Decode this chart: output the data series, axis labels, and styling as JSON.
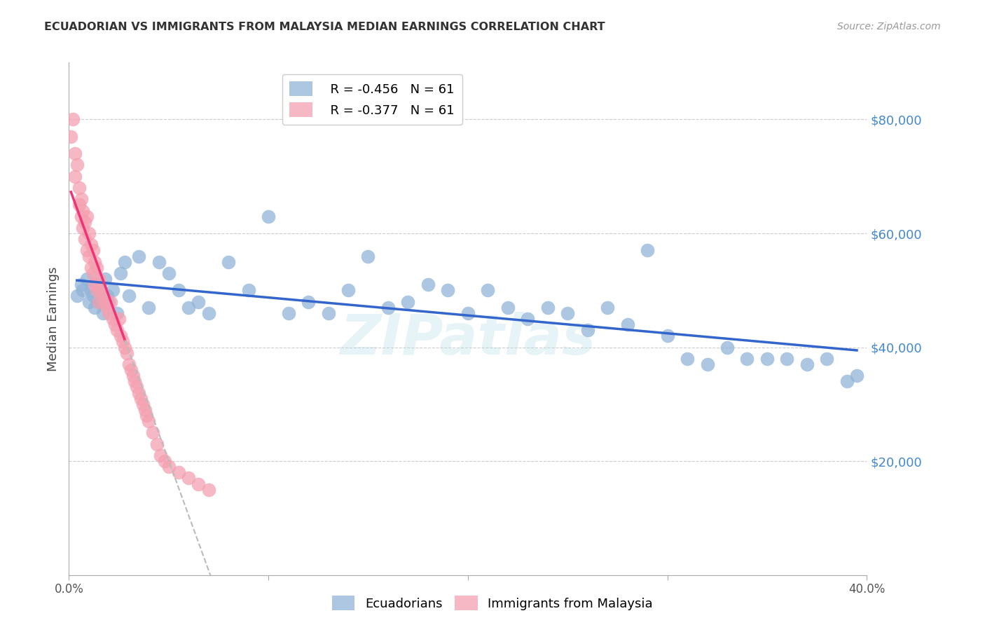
{
  "title": "ECUADORIAN VS IMMIGRANTS FROM MALAYSIA MEDIAN EARNINGS CORRELATION CHART",
  "source": "Source: ZipAtlas.com",
  "ylabel": "Median Earnings",
  "right_yticks": [
    20000,
    40000,
    60000,
    80000
  ],
  "right_yticklabels": [
    "$20,000",
    "$40,000",
    "$60,000",
    "$80,000"
  ],
  "xlim": [
    0.0,
    0.4
  ],
  "ylim": [
    0,
    90000
  ],
  "legend_blue_r": "R = -0.456",
  "legend_blue_n": "N = 61",
  "legend_pink_r": "R = -0.377",
  "legend_pink_n": "N = 61",
  "blue_color": "#92B4D7",
  "pink_color": "#F4A0B0",
  "trend_blue_color": "#3366CC",
  "trend_pink_color": "#EE3377",
  "trend_pink_dashed_color": "#BBBBBB",
  "watermark": "ZIPatlas",
  "ecuadorians_x": [
    0.004,
    0.006,
    0.007,
    0.009,
    0.01,
    0.011,
    0.012,
    0.013,
    0.014,
    0.015,
    0.016,
    0.017,
    0.018,
    0.019,
    0.02,
    0.022,
    0.024,
    0.026,
    0.028,
    0.03,
    0.035,
    0.04,
    0.045,
    0.05,
    0.055,
    0.06,
    0.065,
    0.07,
    0.08,
    0.09,
    0.1,
    0.11,
    0.12,
    0.13,
    0.14,
    0.15,
    0.16,
    0.17,
    0.18,
    0.19,
    0.2,
    0.21,
    0.22,
    0.23,
    0.24,
    0.25,
    0.26,
    0.27,
    0.28,
    0.29,
    0.3,
    0.31,
    0.32,
    0.33,
    0.34,
    0.35,
    0.36,
    0.37,
    0.38,
    0.39,
    0.395
  ],
  "ecuadorians_y": [
    49000,
    51000,
    50000,
    52000,
    48000,
    50000,
    49000,
    47000,
    51000,
    48000,
    50000,
    46000,
    52000,
    49000,
    48000,
    50000,
    46000,
    53000,
    55000,
    49000,
    56000,
    47000,
    55000,
    53000,
    50000,
    47000,
    48000,
    46000,
    55000,
    50000,
    63000,
    46000,
    48000,
    46000,
    50000,
    56000,
    47000,
    48000,
    51000,
    50000,
    46000,
    50000,
    47000,
    45000,
    47000,
    46000,
    43000,
    47000,
    44000,
    57000,
    42000,
    38000,
    37000,
    40000,
    38000,
    38000,
    38000,
    37000,
    38000,
    34000,
    35000
  ],
  "malaysia_x": [
    0.001,
    0.002,
    0.003,
    0.003,
    0.004,
    0.005,
    0.005,
    0.006,
    0.006,
    0.007,
    0.007,
    0.008,
    0.008,
    0.009,
    0.009,
    0.01,
    0.01,
    0.011,
    0.011,
    0.012,
    0.012,
    0.013,
    0.013,
    0.014,
    0.014,
    0.015,
    0.015,
    0.016,
    0.017,
    0.018,
    0.019,
    0.02,
    0.021,
    0.022,
    0.023,
    0.024,
    0.025,
    0.026,
    0.027,
    0.028,
    0.029,
    0.03,
    0.031,
    0.032,
    0.033,
    0.034,
    0.035,
    0.036,
    0.037,
    0.038,
    0.039,
    0.04,
    0.042,
    0.044,
    0.046,
    0.048,
    0.05,
    0.055,
    0.06,
    0.065,
    0.07
  ],
  "malaysia_y": [
    77000,
    80000,
    74000,
    70000,
    72000,
    68000,
    65000,
    66000,
    63000,
    64000,
    61000,
    62000,
    59000,
    63000,
    57000,
    60000,
    56000,
    58000,
    54000,
    57000,
    53000,
    55000,
    51000,
    54000,
    50000,
    52000,
    48000,
    50000,
    49000,
    48000,
    47000,
    46000,
    48000,
    45000,
    44000,
    43000,
    45000,
    42000,
    41000,
    40000,
    39000,
    37000,
    36000,
    35000,
    34000,
    33000,
    32000,
    31000,
    30000,
    29000,
    28000,
    27000,
    25000,
    23000,
    21000,
    20000,
    19000,
    18000,
    17000,
    16000,
    15000
  ],
  "xticks": [
    0.0,
    0.1,
    0.2,
    0.3,
    0.4
  ],
  "xtick_labels_show": [
    "0.0%",
    "",
    "",
    "",
    "40.0%"
  ]
}
